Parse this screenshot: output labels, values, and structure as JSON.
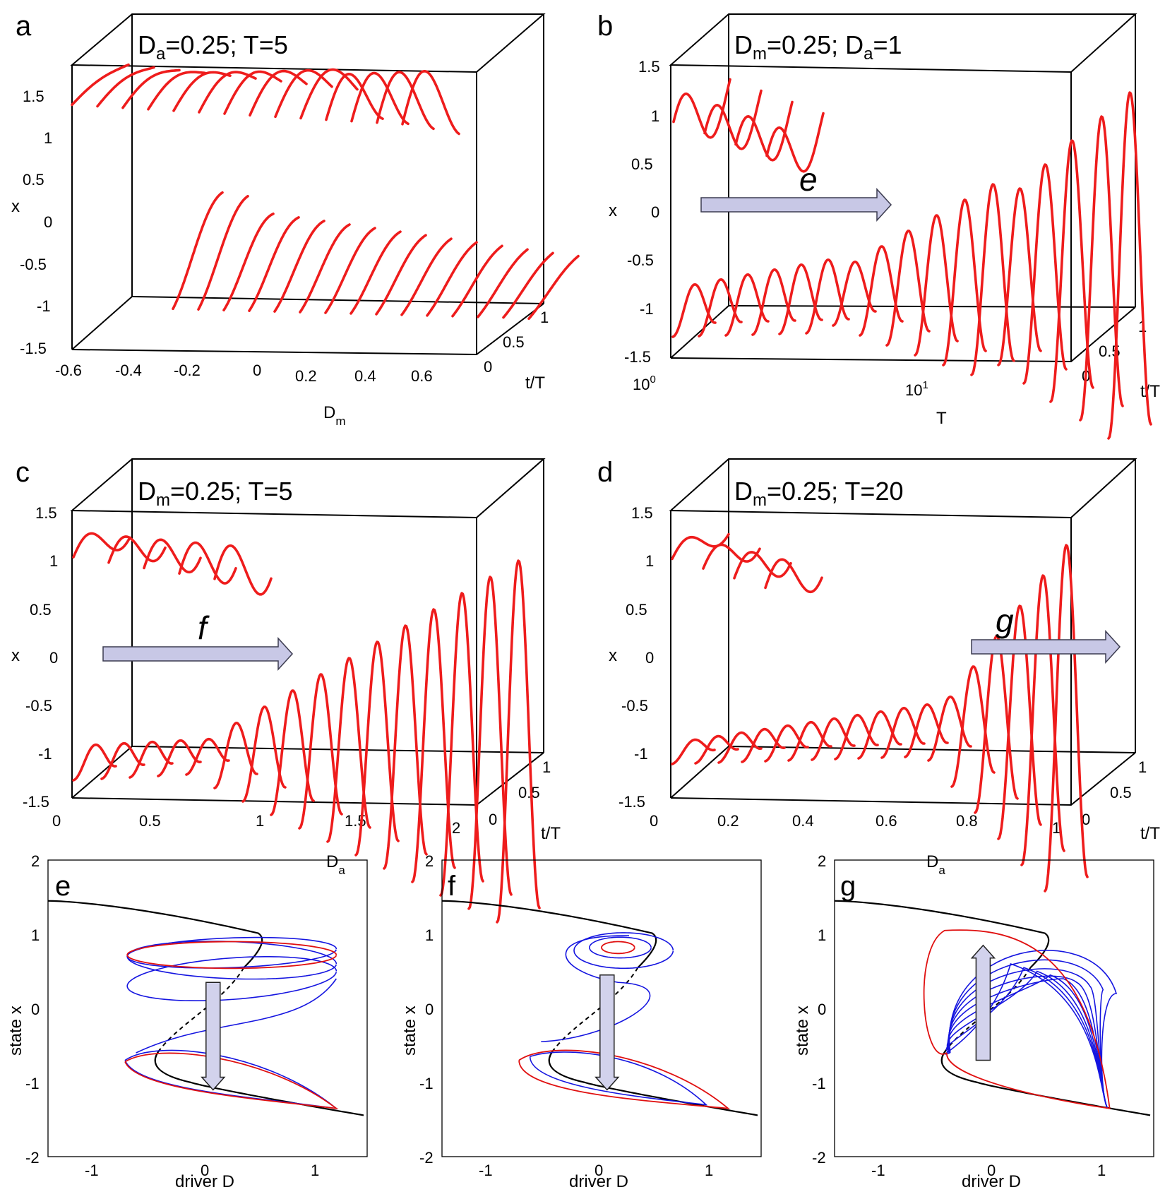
{
  "colors": {
    "curve": "#ee1c1c",
    "arrow_fill": "#c8c8e6",
    "blue": "#1515e0",
    "red": "#e01010",
    "black": "#000000"
  },
  "panels3d": {
    "a": {
      "letter": "a",
      "title_parts": [
        "D",
        "a",
        "=0.25; T=5"
      ],
      "xlabel": "D",
      "xlabel_sub": "m",
      "ylabel": "x",
      "zlabel": "t/T",
      "xticks": [
        "-0.6",
        "-0.4",
        "-0.2",
        "0",
        "0.2",
        "0.4",
        "0.6"
      ],
      "yticks": [
        "1.5",
        "1",
        "0.5",
        "0",
        "-0.5",
        "-1",
        "-1.5"
      ],
      "zticks": [
        "0",
        "0.5",
        "1"
      ]
    },
    "b": {
      "letter": "b",
      "title_parts": [
        "D",
        "m",
        "=0.25; D",
        "a",
        "=1"
      ],
      "xlabel": "T",
      "ylabel": "x",
      "zlabel": "t/T",
      "arrow": "e",
      "xticks": [
        "10",
        "0",
        "10",
        "1"
      ],
      "yticks": [
        "1.5",
        "1",
        "0.5",
        "0",
        "-0.5",
        "-1",
        "-1.5"
      ],
      "zticks": [
        "0",
        "0.5",
        "1"
      ]
    },
    "c": {
      "letter": "c",
      "title_parts": [
        "D",
        "m",
        "=0.25; T=5"
      ],
      "xlabel": "D",
      "xlabel_sub": "a",
      "ylabel": "x",
      "zlabel": "t/T",
      "arrow": "f",
      "xticks": [
        "0",
        "0.5",
        "1",
        "1.5",
        "2"
      ],
      "yticks": [
        "1.5",
        "1",
        "0.5",
        "0",
        "-0.5",
        "-1",
        "-1.5"
      ],
      "zticks": [
        "0",
        "0.5",
        "1"
      ]
    },
    "d": {
      "letter": "d",
      "title_parts": [
        "D",
        "m",
        "=0.25; T=20"
      ],
      "xlabel": "D",
      "xlabel_sub": "a",
      "ylabel": "x",
      "zlabel": "t/T",
      "arrow": "g",
      "xticks": [
        "0",
        "0.2",
        "0.4",
        "0.6",
        "0.8",
        "1"
      ],
      "yticks": [
        "1.5",
        "1",
        "0.5",
        "0",
        "-0.5",
        "-1",
        "-1.5"
      ],
      "zticks": [
        "0",
        "0.5",
        "1"
      ]
    }
  },
  "panels2d": {
    "e": {
      "letter": "e",
      "xlabel": "driver D",
      "ylabel": "state x",
      "xticks": [
        "-1",
        "0",
        "1"
      ],
      "yticks": [
        "2",
        "1",
        "0",
        "-1",
        "-2"
      ]
    },
    "f": {
      "letter": "f",
      "xlabel": "driver D",
      "ylabel": "state x",
      "xticks": [
        "-1",
        "0",
        "1"
      ],
      "yticks": [
        "2",
        "1",
        "0",
        "-1",
        "-2"
      ]
    },
    "g": {
      "letter": "g",
      "xlabel": "driver D",
      "ylabel": "state x",
      "xticks": [
        "-1",
        "0",
        "1"
      ],
      "yticks": [
        "2",
        "1",
        "0",
        "-1",
        "-2"
      ]
    }
  },
  "chart_data": [
    {
      "type": "line",
      "panel": "a",
      "description_series": "x(t/T) response curves for varying D_m",
      "x_param": "D_m",
      "x_range": [
        -0.6,
        0.7
      ],
      "ylim": [
        -1.5,
        1.5
      ],
      "zlim": [
        0,
        1
      ],
      "curves": {
        "upper_branch_count": 14,
        "lower_branch_count": 15
      }
    },
    {
      "type": "line",
      "panel": "b",
      "x_param": "T",
      "x_scale": "log",
      "x_range": [
        1,
        30
      ],
      "ylim": [
        -1.5,
        1.5
      ],
      "zlim": [
        0,
        1
      ]
    },
    {
      "type": "line",
      "panel": "c",
      "x_param": "D_a",
      "x_range": [
        0,
        2
      ],
      "ylim": [
        -1.5,
        1.5
      ],
      "zlim": [
        0,
        1
      ]
    },
    {
      "type": "line",
      "panel": "d",
      "x_param": "D_a",
      "x_range": [
        0,
        1
      ],
      "ylim": [
        -1.5,
        1.5
      ],
      "zlim": [
        0,
        1
      ]
    },
    {
      "type": "line",
      "panel": "e",
      "xlim": [
        -1.4,
        1.5
      ],
      "ylim": [
        -2,
        2
      ],
      "equilibrium": "x - x^3/3 style fold curve",
      "series_colors": [
        "black",
        "blue",
        "red"
      ]
    },
    {
      "type": "line",
      "panel": "f",
      "xlim": [
        -1.4,
        1.5
      ],
      "ylim": [
        -2,
        2
      ]
    },
    {
      "type": "line",
      "panel": "g",
      "xlim": [
        -1.4,
        1.5
      ],
      "ylim": [
        -2,
        2
      ]
    }
  ]
}
